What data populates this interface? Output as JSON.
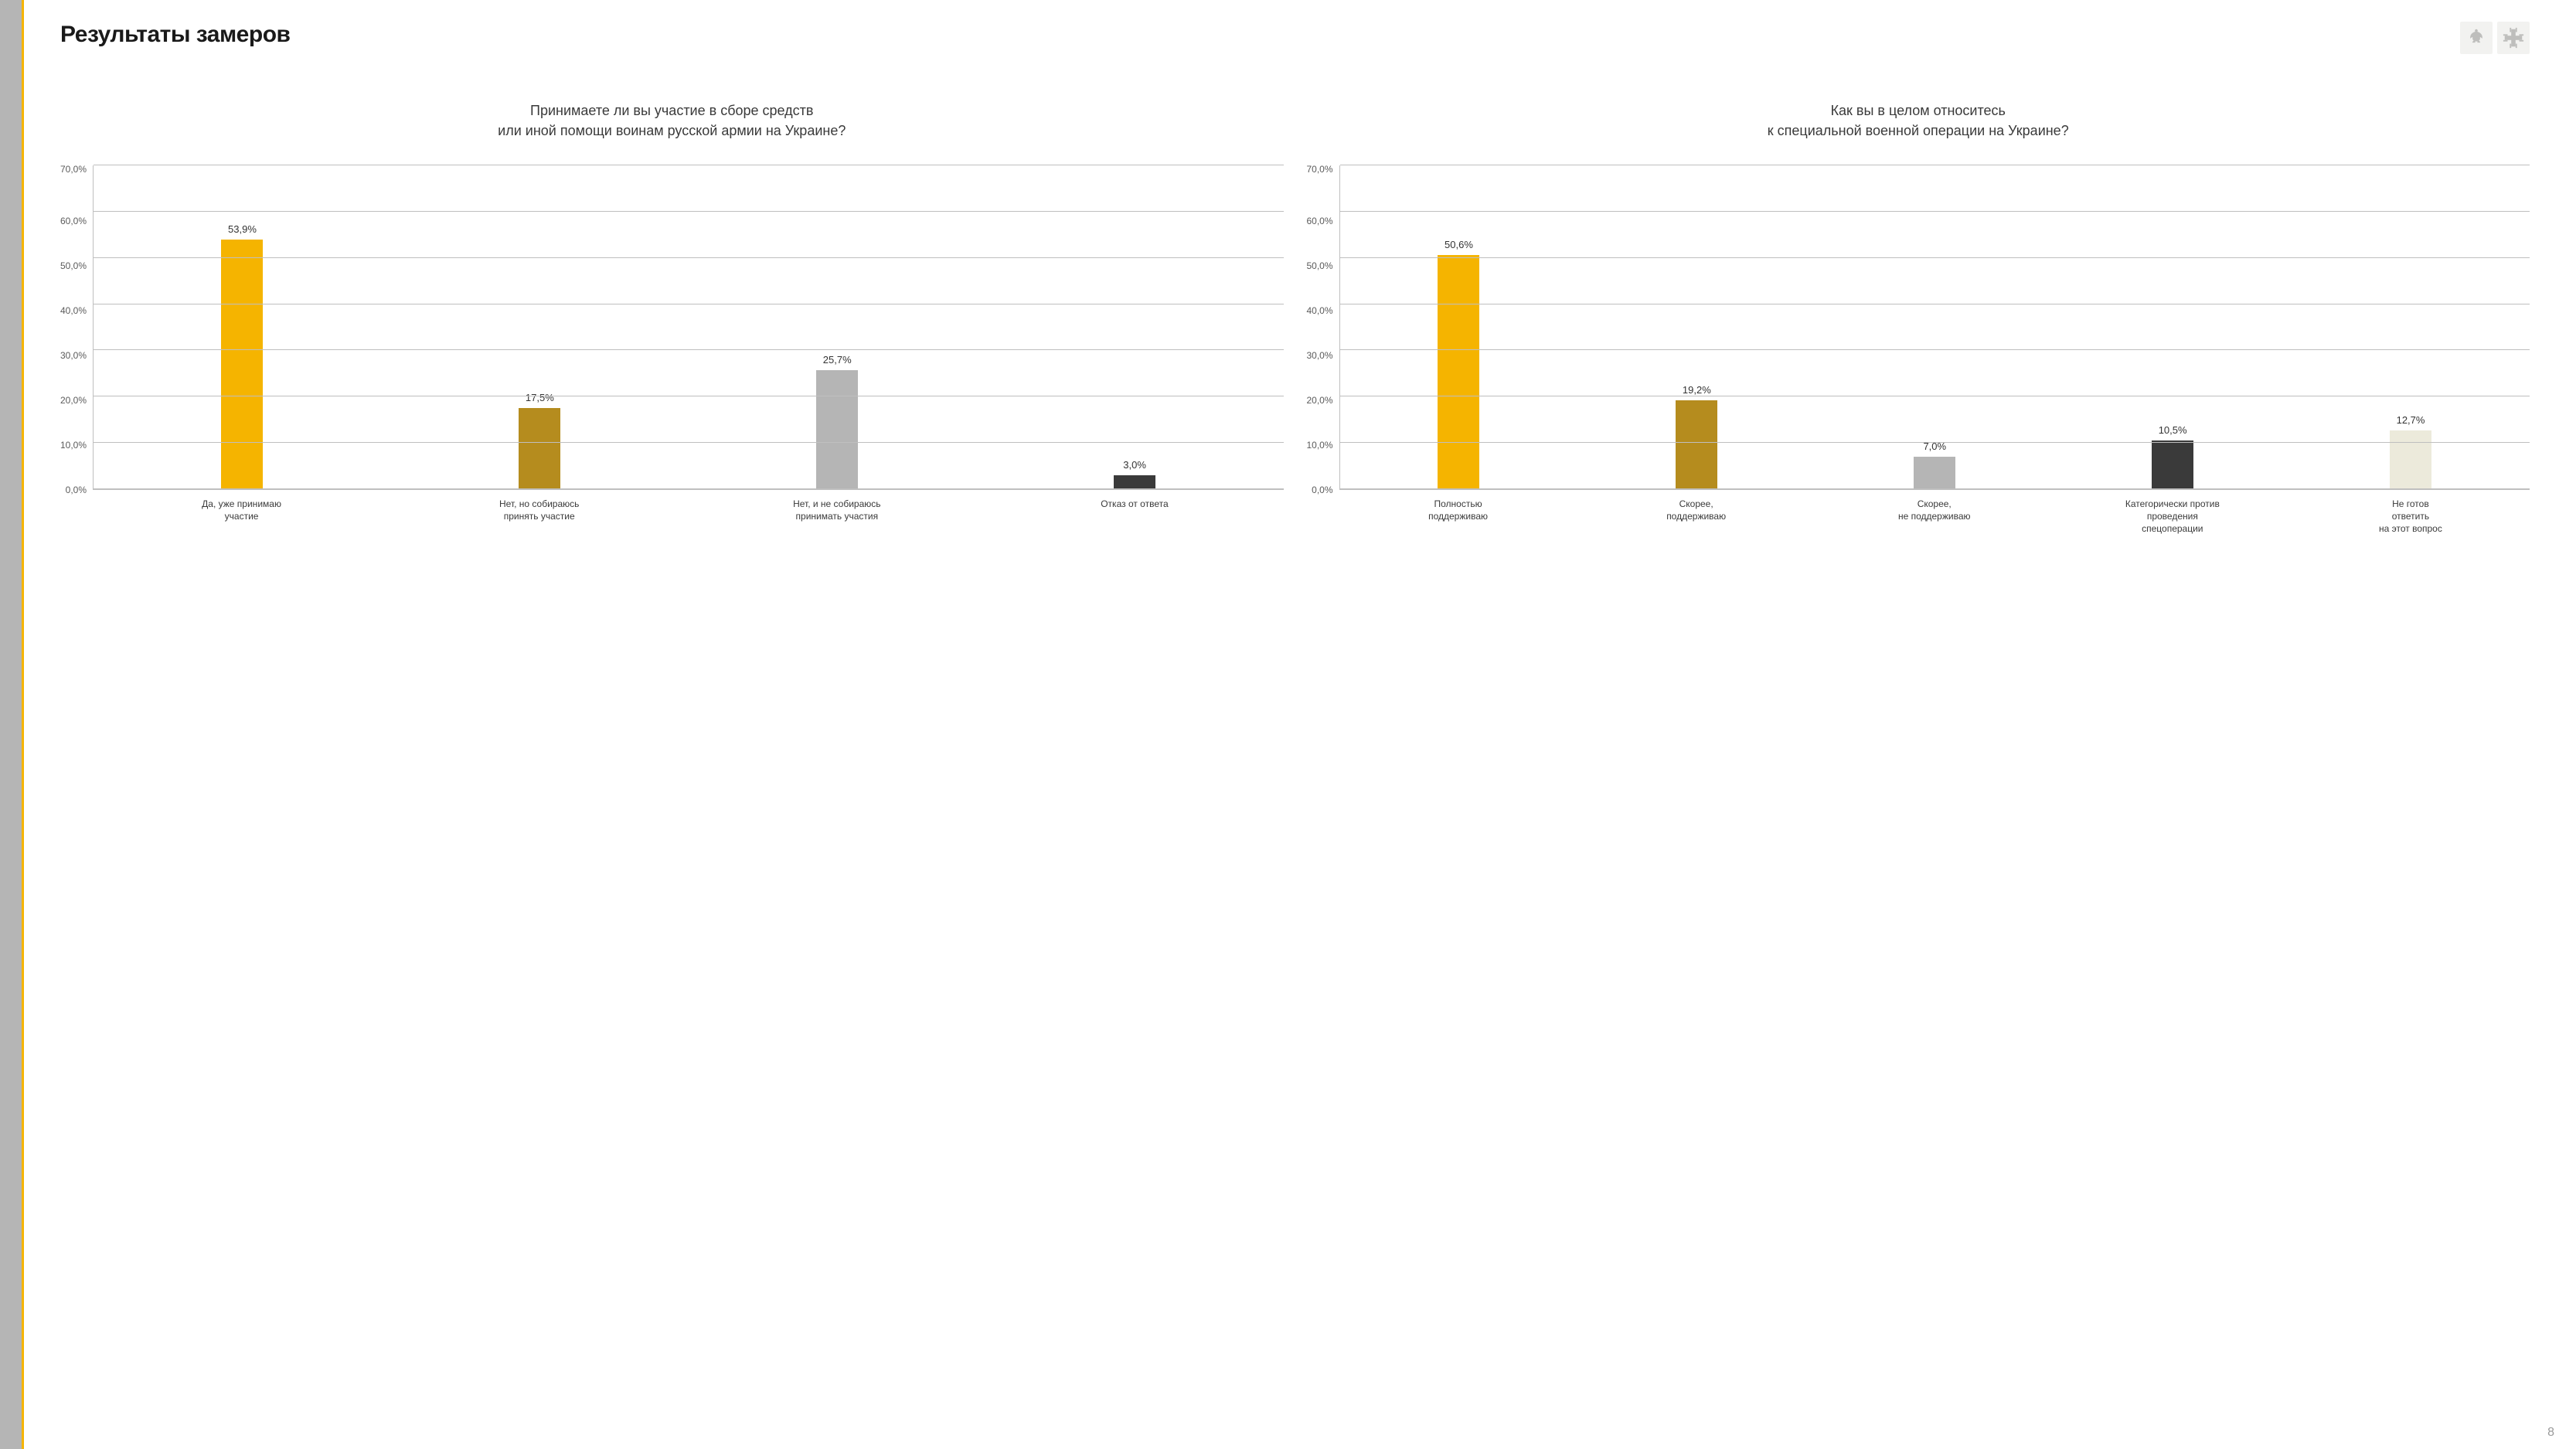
{
  "page_title": "Результаты замеров",
  "page_number": "8",
  "colors": {
    "left_stripe": "#b5b5b5",
    "accent_stripe": "#f5b400",
    "grid": "#bfbfbf",
    "text": "#3a3a3a",
    "logo_bg": "#e9e9e5"
  },
  "y_axis": {
    "min": 0,
    "max": 70,
    "step": 10,
    "ticks": [
      "70,0%",
      "60,0%",
      "50,0%",
      "40,0%",
      "30,0%",
      "20,0%",
      "10,0%",
      "0,0%"
    ]
  },
  "chart_left": {
    "title_line1": "Принимаете ли вы участие в сборе средств",
    "title_line2": "или иной помощи воинам русской армии на Украине?",
    "type": "bar",
    "categories": [
      "Да, уже принимаю\nучастие",
      "Нет, но собираюсь\nпринять участие",
      "Нет, и не собираюсь\nпринимать участия",
      "Отказ от ответа"
    ],
    "values": [
      53.9,
      17.5,
      25.7,
      3.0
    ],
    "value_labels": [
      "53,9%",
      "17,5%",
      "25,7%",
      "3,0%"
    ],
    "bar_colors": [
      "#f5b400",
      "#b58c1e",
      "#b5b5b5",
      "#3a3a3a"
    ]
  },
  "chart_right": {
    "title_line1": "Как вы в целом относитесь",
    "title_line2": "к специальной военной операции на Украине?",
    "type": "bar",
    "categories": [
      "Полностью\nподдерживаю",
      "Скорее,\nподдерживаю",
      "Скорее,\nне поддерживаю",
      "Категорически против\nпроведения\nспецоперации",
      "Не готов\nответить\nна этот вопрос"
    ],
    "values": [
      50.6,
      19.2,
      7.0,
      10.5,
      12.7
    ],
    "value_labels": [
      "50,6%",
      "19,2%",
      "7,0%",
      "10,5%",
      "12,7%"
    ],
    "bar_colors": [
      "#f5b400",
      "#b58c1e",
      "#b5b5b5",
      "#3a3a3a",
      "#eceadb"
    ]
  }
}
